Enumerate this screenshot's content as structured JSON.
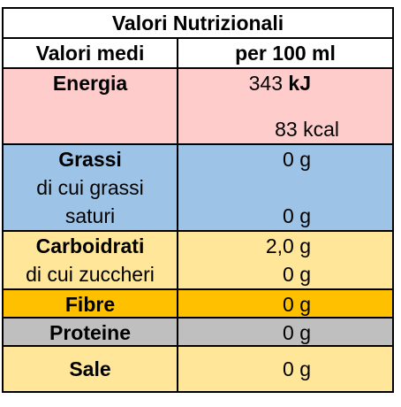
{
  "title": "Valori Nutrizionali",
  "header": {
    "left": "Valori medi",
    "right": "per 100 ml"
  },
  "rows": {
    "energia": {
      "label": "Energia",
      "value_kj_num": "343",
      "value_kj_unit": "kJ",
      "value_kcal": "83 kcal",
      "bg": "#FFCCCC"
    },
    "grassi": {
      "label": "Grassi",
      "sub_line1": "di cui grassi",
      "sub_line2": "saturi",
      "value": "0 g",
      "value_sub": "0 g",
      "bg": "#9DC3E6"
    },
    "carboidrati": {
      "label": "Carboidrati",
      "sub": "di cui zuccheri",
      "value": "2,0 g",
      "value_sub": "0 g",
      "bg": "#FFE699"
    },
    "fibre": {
      "label": "Fibre",
      "value": "0 g",
      "bg": "#FFC000"
    },
    "proteine": {
      "label": "Proteine",
      "value": "0 g",
      "bg": "#BFBFBF"
    },
    "sale": {
      "label": "Sale",
      "value": "0 g",
      "bg": "#FFE699"
    }
  }
}
